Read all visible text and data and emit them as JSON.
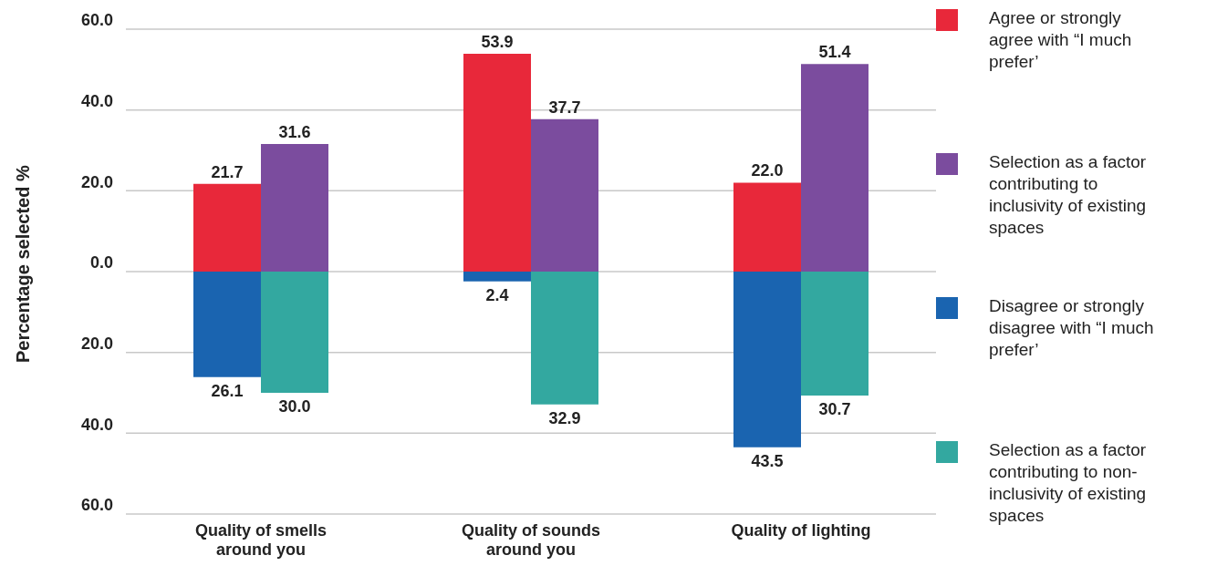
{
  "chart_data": {
    "type": "bar",
    "ylabel": "Percentage selected %",
    "categories": [
      "Quality of smells around you",
      "Quality of sounds around you",
      "Quality of lighting"
    ],
    "series": [
      {
        "name": "Agree or strongly agree with “I much prefer’",
        "color": "#e8283a",
        "values": [
          21.7,
          53.9,
          22.0
        ],
        "base": [
          0,
          0,
          0
        ],
        "value_labels": [
          "21.7",
          "53.9",
          "22.0"
        ]
      },
      {
        "name": "Selection as a factor contributing to inclusivity of existing spaces",
        "color": "#7b4c9e",
        "values": [
          31.6,
          37.7,
          51.4
        ],
        "base": [
          0,
          0,
          0
        ],
        "value_labels": [
          "31.6",
          "37.7",
          "51.4"
        ]
      },
      {
        "name": "Disagree or strongly disagree with “I much prefer’",
        "color": "#1a64b0",
        "values": [
          26.1,
          2.4,
          43.5
        ],
        "base": [
          -26.1,
          -2.4,
          -43.5
        ],
        "value_labels": [
          "26.1",
          "2.4",
          "43.5"
        ]
      },
      {
        "name": "Selection as a factor contributing to non-inclusivity of existing spaces",
        "color": "#33a8a0",
        "values": [
          30.0,
          32.9,
          30.7
        ],
        "base": [
          -30.0,
          -32.9,
          -30.7
        ],
        "value_labels": [
          "30.0",
          "32.9",
          "30.7"
        ]
      }
    ],
    "ylim": [
      -60,
      60
    ],
    "yticks": [
      {
        "value": -60,
        "label": "60.0"
      },
      {
        "value": -40,
        "label": "40.0"
      },
      {
        "value": -20,
        "label": "20.0"
      },
      {
        "value": 0,
        "label": "0.0"
      },
      {
        "value": 20,
        "label": "20.0"
      },
      {
        "value": 40,
        "label": "40.0"
      },
      {
        "value": 60,
        "label": "60.0"
      }
    ],
    "grid": "y",
    "legend": "right"
  }
}
